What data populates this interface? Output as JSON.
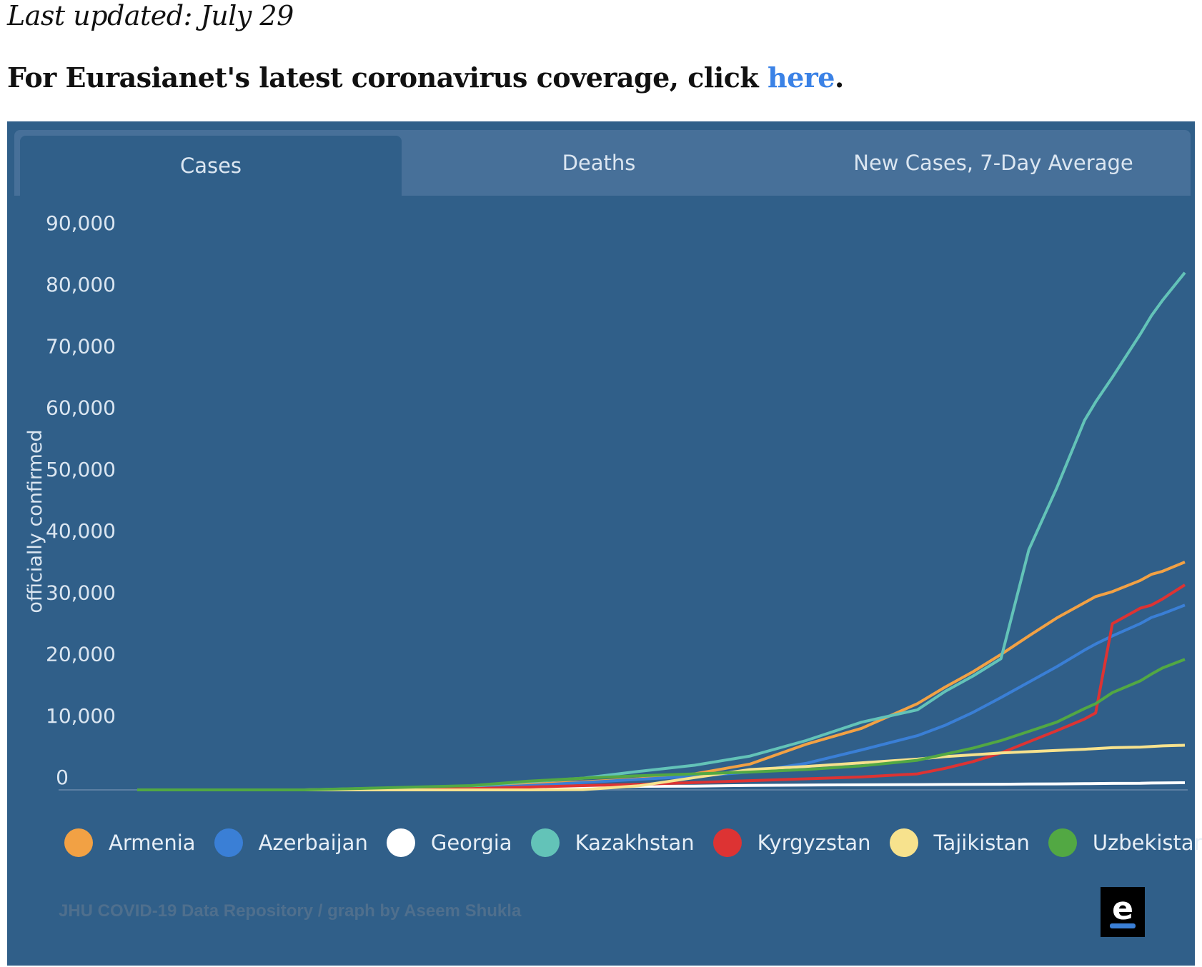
{
  "page": {
    "updated": "Last updated: July 29",
    "headline_prefix": "For Eurasianet's latest coronavirus coverage, click ",
    "headline_link": "here",
    "headline_suffix": "."
  },
  "tabs": [
    {
      "label": "Cases",
      "active": true
    },
    {
      "label": "Deaths",
      "active": false
    },
    {
      "label": "New Cases, 7-Day Average",
      "active": false
    }
  ],
  "credit": "JHU COVID-19 Data Repository / graph by Aseem Shukla",
  "logo": "e",
  "colors": {
    "panel": "#305f89",
    "Armenia": "#f2a144",
    "Azerbaijan": "#3a7fd6",
    "Georgia": "#ffffff",
    "Kazakhstan": "#63c3b8",
    "Kyrgyzstan": "#dd3333",
    "Tajikistan": "#f7e28d",
    "Uzbekistan": "#52a843"
  },
  "chart_data": {
    "type": "line",
    "ylabel": "officially confirmed",
    "ylim": [
      0,
      90000
    ],
    "yticks": [
      0,
      10000,
      20000,
      30000,
      40000,
      50000,
      60000,
      70000,
      80000,
      90000
    ],
    "ytick_labels": [
      "0",
      "10,000",
      "20,000",
      "30,000",
      "40,000",
      "50,000",
      "60,000",
      "70,000",
      "80,000",
      "90,000"
    ],
    "x_start": "2020-01-22",
    "x_end": "2020-07-29",
    "x": [
      0,
      30,
      60,
      70,
      80,
      90,
      100,
      110,
      120,
      130,
      140,
      145,
      150,
      155,
      160,
      165,
      170,
      172,
      175,
      180,
      182,
      184,
      188
    ],
    "series": [
      {
        "name": "Armenia",
        "values": [
          0,
          0,
          480,
          920,
          1300,
          1800,
          2600,
          4200,
          7400,
          10000,
          14000,
          16700,
          19200,
          22000,
          25000,
          27900,
          30400,
          31400,
          32200,
          34000,
          35000,
          35500,
          37000
        ]
      },
      {
        "name": "Azerbaijan",
        "values": [
          0,
          0,
          300,
          700,
          1200,
          1700,
          2200,
          2900,
          4300,
          6500,
          8800,
          10500,
          12600,
          15000,
          17500,
          20000,
          22700,
          23700,
          25000,
          27000,
          28000,
          28600,
          30000
        ]
      },
      {
        "name": "Georgia",
        "values": [
          0,
          0,
          90,
          280,
          400,
          580,
          620,
          730,
          790,
          820,
          860,
          880,
          900,
          920,
          950,
          980,
          1010,
          1030,
          1050,
          1070,
          1110,
          1140,
          1160
        ]
      },
      {
        "name": "Kazakhstan",
        "values": [
          0,
          0,
          600,
          1300,
          1900,
          3000,
          4000,
          5500,
          8000,
          11000,
          13000,
          16000,
          18500,
          21300,
          39000,
          49000,
          60000,
          63000,
          67000,
          74000,
          77000,
          79500,
          84000
        ]
      },
      {
        "name": "Kyrgyzstan",
        "values": [
          0,
          0,
          200,
          450,
          700,
          900,
          1200,
          1500,
          1800,
          2100,
          2600,
          3500,
          4600,
          6000,
          7800,
          9600,
          11500,
          12500,
          27000,
          29500,
          30000,
          31000,
          33300
        ]
      },
      {
        "name": "Tajikistan",
        "values": [
          0,
          0,
          0,
          0,
          50,
          660,
          2000,
          3300,
          3800,
          4400,
          5000,
          5400,
          5700,
          6000,
          6200,
          6400,
          6600,
          6700,
          6850,
          6950,
          7050,
          7150,
          7250
        ]
      },
      {
        "name": "Uzbekistan",
        "values": [
          0,
          0,
          700,
          1400,
          1900,
          2300,
          2600,
          2900,
          3300,
          3900,
          4800,
          5800,
          6800,
          8000,
          9500,
          11000,
          13200,
          14000,
          15800,
          17700,
          18800,
          19800,
          21200
        ]
      }
    ],
    "legend": [
      "Armenia",
      "Azerbaijan",
      "Georgia",
      "Kazakhstan",
      "Kyrgyzstan",
      "Tajikistan",
      "Uzbekistan"
    ],
    "legend_position": "bottom",
    "grid": false
  }
}
